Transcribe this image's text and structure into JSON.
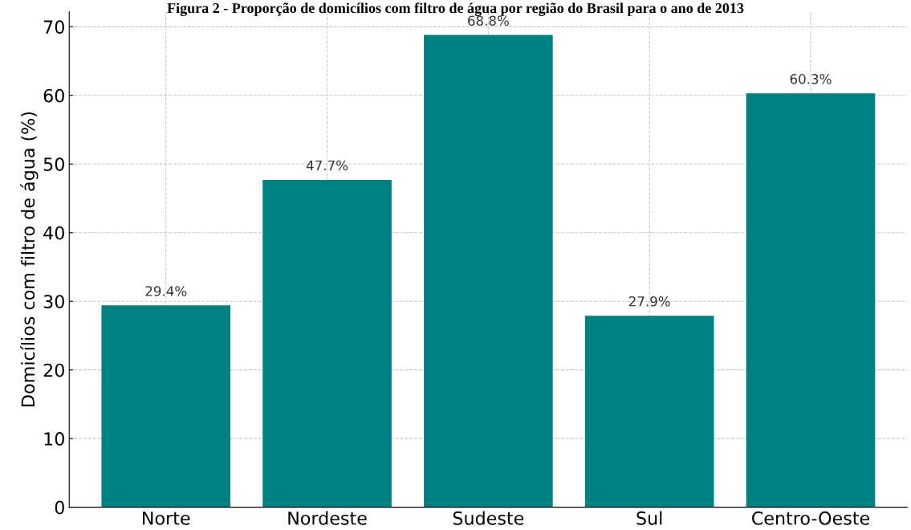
{
  "chart_data": {
    "type": "bar",
    "title": "Figura 2 - Proporção de domicílios com filtro de água por região do Brasil para o ano de 2013",
    "ylabel": "Domicílios com filtro de água (%)",
    "categories": [
      "Norte",
      "Nordeste",
      "Sudeste",
      "Sul",
      "Centro-Oeste"
    ],
    "values": [
      29.4,
      47.7,
      68.8,
      27.9,
      60.3
    ],
    "value_labels": [
      "29.4%",
      "47.7%",
      "68.8%",
      "27.9%",
      "60.3%"
    ],
    "color": "#008080",
    "ylim": [
      0,
      72.2
    ],
    "yticks": [
      0,
      10,
      20,
      30,
      40,
      50,
      60,
      70
    ],
    "grid": true
  }
}
